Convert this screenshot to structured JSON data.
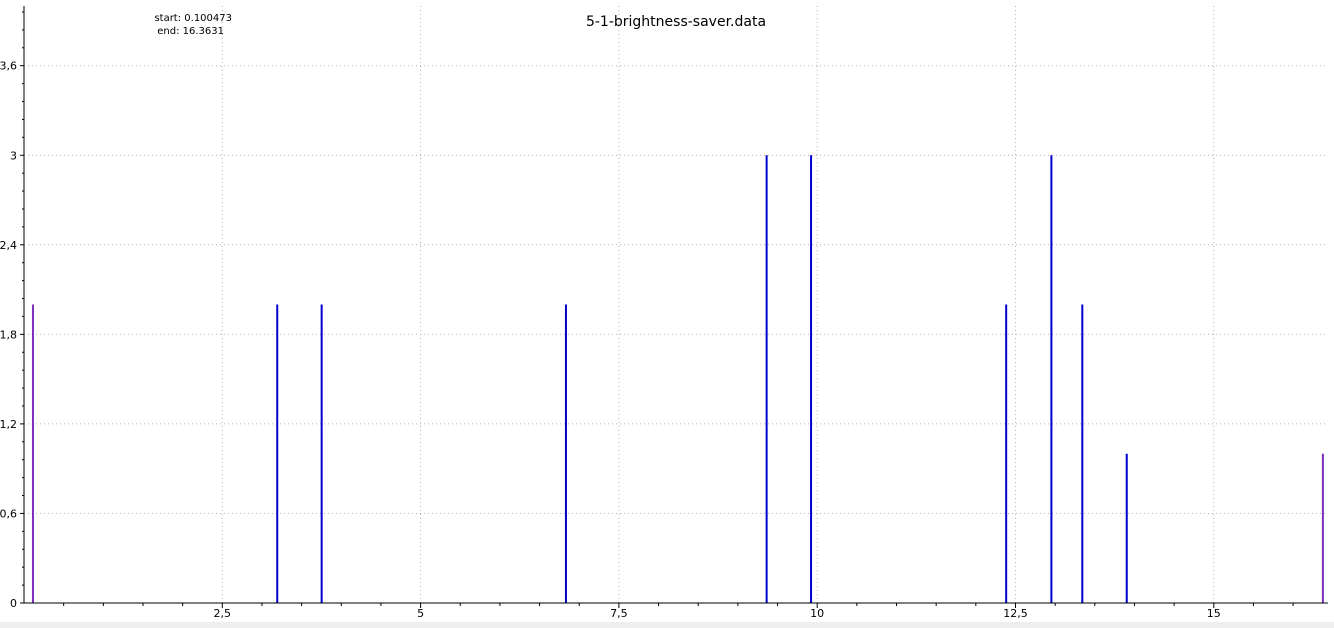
{
  "chart_data": {
    "type": "bar",
    "title": "5-1-brightness-saver.data",
    "info": {
      "start_label": "start: 0.100473",
      "end_label": "end: 16.3631"
    },
    "xlabel": "",
    "ylabel": "",
    "xlim": [
      0,
      16.3631
    ],
    "ylim": [
      0,
      4.0
    ],
    "grid": true,
    "x_ticks": [
      {
        "value": 2.5,
        "label": "2,5"
      },
      {
        "value": 5,
        "label": "5"
      },
      {
        "value": 7.5,
        "label": "7,5"
      },
      {
        "value": 10,
        "label": "10"
      },
      {
        "value": 12.5,
        "label": "12,5"
      },
      {
        "value": 15,
        "label": "15"
      }
    ],
    "y_ticks": [
      {
        "value": 0,
        "label": "0"
      },
      {
        "value": 0.6,
        "label": "0,6"
      },
      {
        "value": 1.2,
        "label": "1,2"
      },
      {
        "value": 1.8,
        "label": "1,8"
      },
      {
        "value": 2.4,
        "label": "2,4"
      },
      {
        "value": 3,
        "label": "3"
      },
      {
        "value": 3.6,
        "label": "3,6"
      }
    ],
    "series": [
      {
        "color": "#0000cc",
        "highlight_color": "#7f2fbf",
        "events": [
          {
            "x": 0.100473,
            "y": 2,
            "highlight": true
          },
          {
            "x": 3.18,
            "y": 2
          },
          {
            "x": 3.74,
            "y": 2
          },
          {
            "x": 6.82,
            "y": 2
          },
          {
            "x": 9.35,
            "y": 3
          },
          {
            "x": 9.91,
            "y": 3
          },
          {
            "x": 12.37,
            "y": 2
          },
          {
            "x": 12.94,
            "y": 3
          },
          {
            "x": 13.33,
            "y": 2
          },
          {
            "x": 13.89,
            "y": 1
          },
          {
            "x": 16.3631,
            "y": 1,
            "highlight": true
          }
        ]
      }
    ]
  }
}
